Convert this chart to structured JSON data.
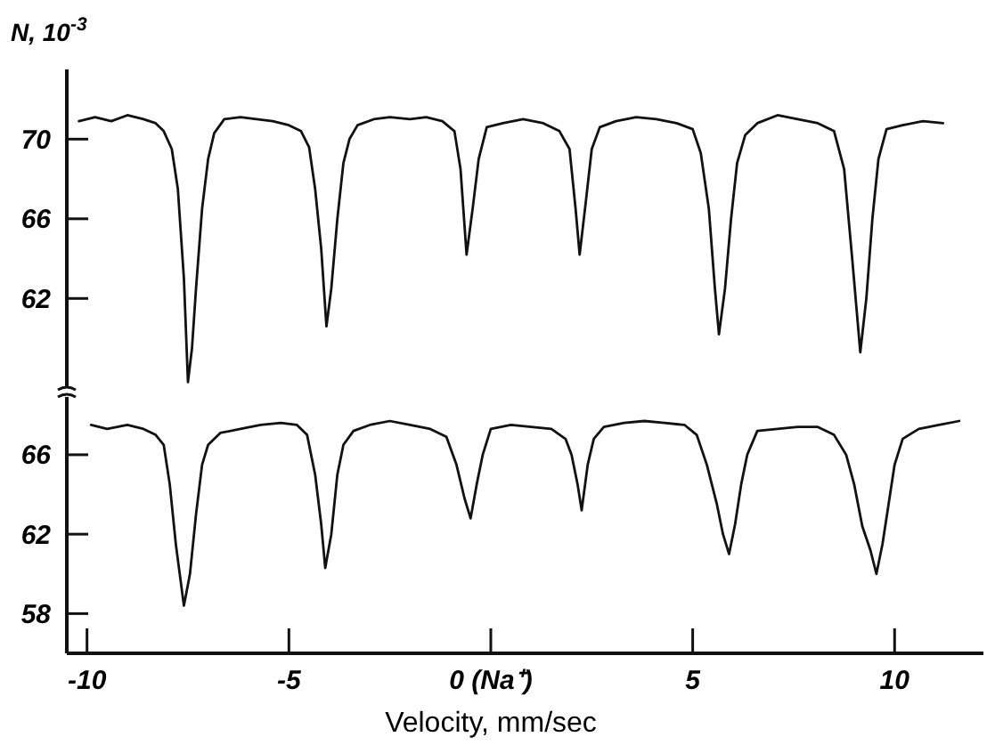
{
  "chart_data": [
    {
      "type": "line",
      "ylabel": "N, 10$^{-3}$",
      "xlim": [
        -10.5,
        12.2
      ],
      "ylim": [
        57.5,
        73.5
      ],
      "yticks": [
        62,
        66,
        70
      ],
      "tick_labels": "y",
      "grid": false,
      "series": [
        {
          "color": "#111111",
          "x": [
            -10.2,
            -9.8,
            -9.4,
            -9.0,
            -8.6,
            -8.3,
            -8.1,
            -7.9,
            -7.75,
            -7.6,
            -7.5,
            -7.4,
            -7.3,
            -7.15,
            -7.0,
            -6.85,
            -6.6,
            -6.2,
            -5.8,
            -5.4,
            -5.0,
            -4.7,
            -4.5,
            -4.35,
            -4.2,
            -4.07,
            -3.95,
            -3.8,
            -3.65,
            -3.5,
            -3.3,
            -2.9,
            -2.5,
            -2.0,
            -1.6,
            -1.2,
            -0.9,
            -0.75,
            -0.6,
            -0.45,
            -0.3,
            -0.1,
            0.3,
            0.8,
            1.3,
            1.7,
            1.95,
            2.1,
            2.2,
            2.35,
            2.5,
            2.7,
            3.1,
            3.6,
            4.1,
            4.6,
            5.0,
            5.2,
            5.4,
            5.55,
            5.65,
            5.8,
            5.95,
            6.1,
            6.3,
            6.6,
            7.1,
            7.6,
            8.1,
            8.5,
            8.75,
            8.95,
            9.15,
            9.3,
            9.45,
            9.6,
            9.8,
            10.2,
            10.7,
            11.2
          ],
          "values": [
            70.9,
            71.1,
            70.9,
            71.2,
            71.0,
            70.8,
            70.4,
            69.5,
            67.5,
            63,
            57.8,
            59.5,
            62.5,
            66.5,
            69.0,
            70.3,
            71.0,
            71.1,
            71.0,
            70.9,
            70.7,
            70.4,
            69.6,
            67.5,
            64.5,
            60.6,
            62.5,
            66.0,
            68.8,
            70.0,
            70.7,
            71.0,
            71.1,
            71.0,
            71.1,
            70.9,
            70.4,
            68.5,
            64.2,
            66.5,
            69.0,
            70.6,
            70.8,
            71.0,
            70.8,
            70.4,
            69.5,
            66.5,
            64.2,
            66.8,
            69.5,
            70.6,
            70.9,
            71.1,
            71.0,
            70.8,
            70.5,
            69.3,
            66.5,
            62.5,
            60.2,
            62.5,
            66,
            68.8,
            70.2,
            70.8,
            71.2,
            71.0,
            70.8,
            70.4,
            68.5,
            64,
            59.3,
            62,
            66,
            69,
            70.5,
            70.7,
            70.9,
            70.8
          ]
        }
      ]
    },
    {
      "type": "line",
      "xlabel": "Velocity, mm/sec",
      "xlim": [
        -10.5,
        12.2
      ],
      "xticks": [
        -10,
        -5,
        {
          "value": 0,
          "label": "0 (Na⁺)"
        },
        5,
        10
      ],
      "ylim": [
        56,
        69
      ],
      "yticks": [
        58,
        62,
        66
      ],
      "grid": false,
      "series": [
        {
          "color": "#111111",
          "x": [
            -9.9,
            -9.5,
            -9.0,
            -8.6,
            -8.3,
            -8.1,
            -7.95,
            -7.8,
            -7.6,
            -7.45,
            -7.3,
            -7.15,
            -7.0,
            -6.7,
            -6.2,
            -5.7,
            -5.2,
            -4.8,
            -4.55,
            -4.35,
            -4.2,
            -4.1,
            -3.95,
            -3.8,
            -3.65,
            -3.4,
            -3.0,
            -2.5,
            -2.0,
            -1.5,
            -1.1,
            -0.85,
            -0.65,
            -0.5,
            -0.35,
            -0.2,
            0.0,
            0.5,
            1.0,
            1.5,
            1.85,
            2.0,
            2.15,
            2.25,
            2.4,
            2.55,
            2.8,
            3.3,
            3.8,
            4.3,
            4.8,
            5.1,
            5.35,
            5.6,
            5.75,
            5.9,
            6.05,
            6.2,
            6.35,
            6.6,
            7.1,
            7.6,
            8.1,
            8.5,
            8.8,
            9.0,
            9.2,
            9.4,
            9.55,
            9.7,
            9.85,
            10.0,
            10.2,
            10.6,
            11.1,
            11.6
          ],
          "values": [
            67.5,
            67.3,
            67.5,
            67.3,
            67.0,
            66.5,
            64.5,
            61.5,
            58.4,
            60.0,
            63.0,
            65.5,
            66.5,
            67.1,
            67.3,
            67.5,
            67.6,
            67.5,
            67.0,
            65.0,
            62.5,
            60.3,
            62.0,
            65.0,
            66.5,
            67.2,
            67.5,
            67.7,
            67.5,
            67.3,
            66.9,
            65.5,
            63.8,
            62.8,
            64.5,
            66.0,
            67.3,
            67.5,
            67.4,
            67.3,
            66.8,
            66.0,
            64.5,
            63.2,
            65.5,
            66.8,
            67.4,
            67.6,
            67.7,
            67.6,
            67.5,
            67.0,
            65.5,
            63.5,
            62.0,
            61.0,
            62.5,
            64.5,
            66.0,
            67.2,
            67.3,
            67.4,
            67.4,
            67.0,
            66.0,
            64.5,
            62.4,
            61.2,
            60.0,
            61.5,
            63.5,
            65.5,
            66.8,
            67.3,
            67.5,
            67.7
          ]
        }
      ]
    }
  ]
}
